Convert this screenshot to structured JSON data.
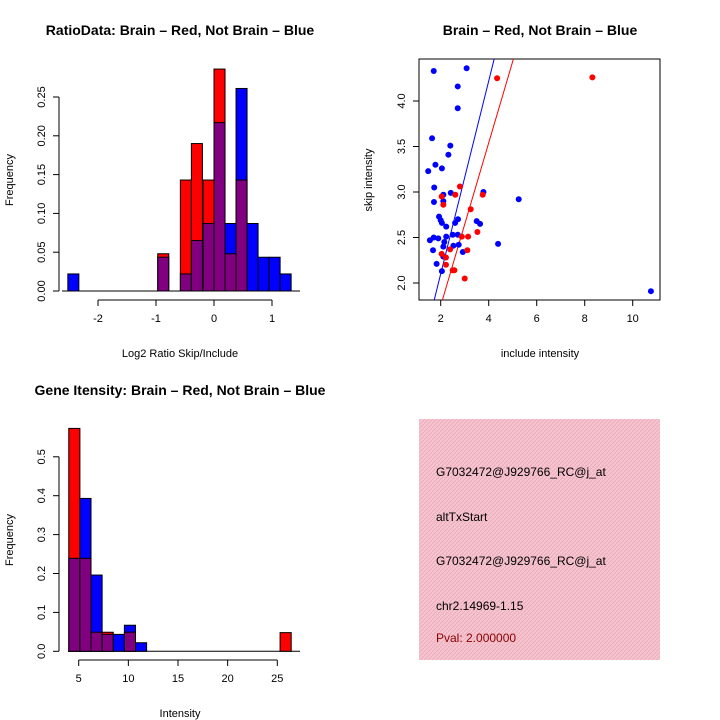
{
  "colors": {
    "red": "#ff0000",
    "blue": "#0000ff",
    "overlap": "#800080",
    "panel_bg": "#f5c4cf",
    "pval": "#8b0000"
  },
  "chart_data": [
    {
      "type": "bar",
      "subtype": "overlaid-histogram",
      "title": "RatioData: Brain – Red, Not Brain – Blue",
      "xlabel": "Log2 Ratio Skip/Include",
      "ylabel": "Frequency",
      "xticks": [
        "-2",
        "-1",
        "0",
        "1"
      ],
      "xtick_values": [
        -2,
        -1,
        0,
        1
      ],
      "yticks": [
        "0.00",
        "0.05",
        "0.10",
        "0.15",
        "0.20",
        "0.25"
      ],
      "ytick_values": [
        0,
        0.05,
        0.1,
        0.15,
        0.2,
        0.25
      ],
      "bin_width": 0.19,
      "bin_left": [
        -2.52,
        -0.97,
        -0.58,
        -0.39,
        -0.19,
        0,
        0.19,
        0.38,
        0.57,
        0.76,
        0.95,
        1.14
      ],
      "series": [
        {
          "name": "Brain",
          "color": "red",
          "values": [
            0,
            0.048,
            0.143,
            0.19,
            0.143,
            0.286,
            0.048,
            0.143,
            0,
            0,
            0,
            0
          ]
        },
        {
          "name": "Not Brain",
          "color": "blue",
          "values": [
            0.022,
            0.0435,
            0.022,
            0.065,
            0.087,
            0.217,
            0.087,
            0.261,
            0.087,
            0.0435,
            0.0435,
            0.022
          ]
        }
      ]
    },
    {
      "type": "scatter",
      "title": "Brain – Red, Not Brain – Blue",
      "xlabel": "include intensity",
      "ylabel": "skip intensity",
      "xlim": [
        1.1,
        11.14
      ],
      "ylim": [
        1.81,
        4.46
      ],
      "xticks": [
        "2",
        "4",
        "6",
        "8",
        "10"
      ],
      "xtick_values": [
        2,
        4,
        6,
        8,
        10
      ],
      "yticks": [
        "2.0",
        "2.5",
        "3.0",
        "3.5",
        "4.0"
      ],
      "ytick_values": [
        2.0,
        2.5,
        3.0,
        3.5,
        4.0
      ],
      "series": [
        {
          "name": "Not Brain",
          "color": "blue",
          "points": [
            [
              1.71,
              4.33
            ],
            [
              3.08,
              4.36
            ],
            [
              2.71,
              4.16
            ],
            [
              2.71,
              3.92
            ],
            [
              1.64,
              3.59
            ],
            [
              2.4,
              3.51
            ],
            [
              2.32,
              3.41
            ],
            [
              1.78,
              3.3
            ],
            [
              2.05,
              3.26
            ],
            [
              1.48,
              3.23
            ],
            [
              1.73,
              3.05
            ],
            [
              2.11,
              2.97
            ],
            [
              2.42,
              2.99
            ],
            [
              3.78,
              3.0
            ],
            [
              2.11,
              2.9
            ],
            [
              1.72,
              2.89
            ],
            [
              5.25,
              2.92
            ],
            [
              1.93,
              2.73
            ],
            [
              2.0,
              2.69
            ],
            [
              2.05,
              2.66
            ],
            [
              2.23,
              2.62
            ],
            [
              2.6,
              2.66
            ],
            [
              2.72,
              2.7
            ],
            [
              3.5,
              2.68
            ],
            [
              3.64,
              2.65
            ],
            [
              2.23,
              2.51
            ],
            [
              2.5,
              2.53
            ],
            [
              2.71,
              2.53
            ],
            [
              1.71,
              2.5
            ],
            [
              1.9,
              2.49
            ],
            [
              1.55,
              2.47
            ],
            [
              2.15,
              2.45
            ],
            [
              2.53,
              2.41
            ],
            [
              2.75,
              2.42
            ],
            [
              2.11,
              2.4
            ],
            [
              1.68,
              2.36
            ],
            [
              2.92,
              2.34
            ],
            [
              4.39,
              2.43
            ],
            [
              2.11,
              2.29
            ],
            [
              1.83,
              2.21
            ],
            [
              2.05,
              2.13
            ],
            [
              10.76,
              1.91
            ]
          ]
        },
        {
          "name": "Brain",
          "color": "red",
          "points": [
            [
              4.35,
              4.25
            ],
            [
              8.32,
              4.26
            ],
            [
              2.8,
              3.06
            ],
            [
              2.61,
              2.97
            ],
            [
              3.75,
              2.97
            ],
            [
              2.04,
              2.95
            ],
            [
              2.11,
              2.86
            ],
            [
              3.25,
              2.81
            ],
            [
              3.53,
              2.56
            ],
            [
              2.88,
              2.51
            ],
            [
              3.14,
              2.51
            ],
            [
              2.39,
              2.37
            ],
            [
              3.11,
              2.36
            ],
            [
              2.04,
              2.32
            ],
            [
              2.22,
              2.28
            ],
            [
              2.22,
              2.2
            ],
            [
              2.5,
              2.14
            ],
            [
              2.57,
              2.14
            ],
            [
              3.0,
              2.05
            ]
          ]
        }
      ],
      "fit_lines": [
        {
          "color": "blue",
          "intercept": -0.02,
          "slope": 1.06
        },
        {
          "color": "red",
          "intercept": -0.04,
          "slope": 0.895
        }
      ]
    },
    {
      "type": "bar",
      "subtype": "overlaid-histogram",
      "title": "Gene Itensity: Brain – Red, Not Brain – Blue",
      "xlabel": "Intensity",
      "ylabel": "Frequency",
      "xticks": [
        "5",
        "10",
        "15",
        "20",
        "25"
      ],
      "xtick_values": [
        5,
        10,
        15,
        20,
        25
      ],
      "yticks": [
        "0.0",
        "0.1",
        "0.2",
        "0.3",
        "0.4",
        "0.5"
      ],
      "ytick_values": [
        0,
        0.1,
        0.2,
        0.3,
        0.4,
        0.5
      ],
      "bin_width": 1.12,
      "bin_left": [
        4.0,
        5.12,
        6.24,
        7.36,
        8.48,
        9.6,
        10.72,
        25.28
      ],
      "series": [
        {
          "name": "Brain",
          "color": "red",
          "values": [
            0.573,
            0.239,
            0.049,
            0.049,
            0,
            0.049,
            0,
            0.048
          ]
        },
        {
          "name": "Not Brain",
          "color": "blue",
          "values": [
            0.239,
            0.393,
            0.196,
            0.0435,
            0.0435,
            0.067,
            0.022,
            0
          ]
        }
      ]
    }
  ],
  "info_panel": {
    "probe_id": "G7032472@J929766_RC@j_at",
    "event_type": "altTxStart",
    "probe_id_2": "G7032472@J929766_RC@j_at",
    "location": "chr2.14969-1.15",
    "pval": "Pval: 2.000000"
  }
}
